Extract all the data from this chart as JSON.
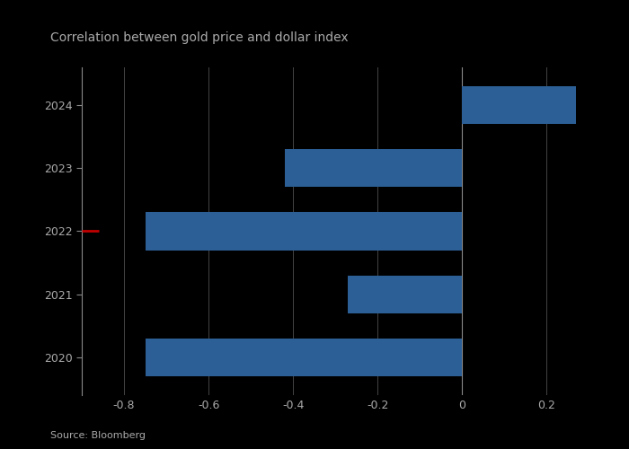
{
  "title": "Correlation between gold price and dollar index",
  "categories": [
    "2020",
    "2021",
    "2022",
    "2023",
    "2024"
  ],
  "values": [
    -0.75,
    -0.27,
    -0.75,
    -0.42,
    0.27
  ],
  "bar_color": "#2b5f96",
  "bar_color_special": "#c00000",
  "background_color": "#000000",
  "plot_bg_color": "#000000",
  "text_color": "#aaaaaa",
  "xlim": [
    -0.9,
    0.35
  ],
  "xticks": [
    -0.8,
    -0.6,
    -0.4,
    -0.2,
    0.0,
    0.2
  ],
  "xtick_labels": [
    "-0.8",
    "-0.6",
    "-0.4",
    "-0.2",
    "0",
    "0.2"
  ],
  "source_text": "Source: Bloomberg",
  "grid_color": "#444444",
  "spine_color": "#888888",
  "title_fontsize": 10,
  "tick_fontsize": 9,
  "source_fontsize": 8,
  "bar_height": 0.6
}
